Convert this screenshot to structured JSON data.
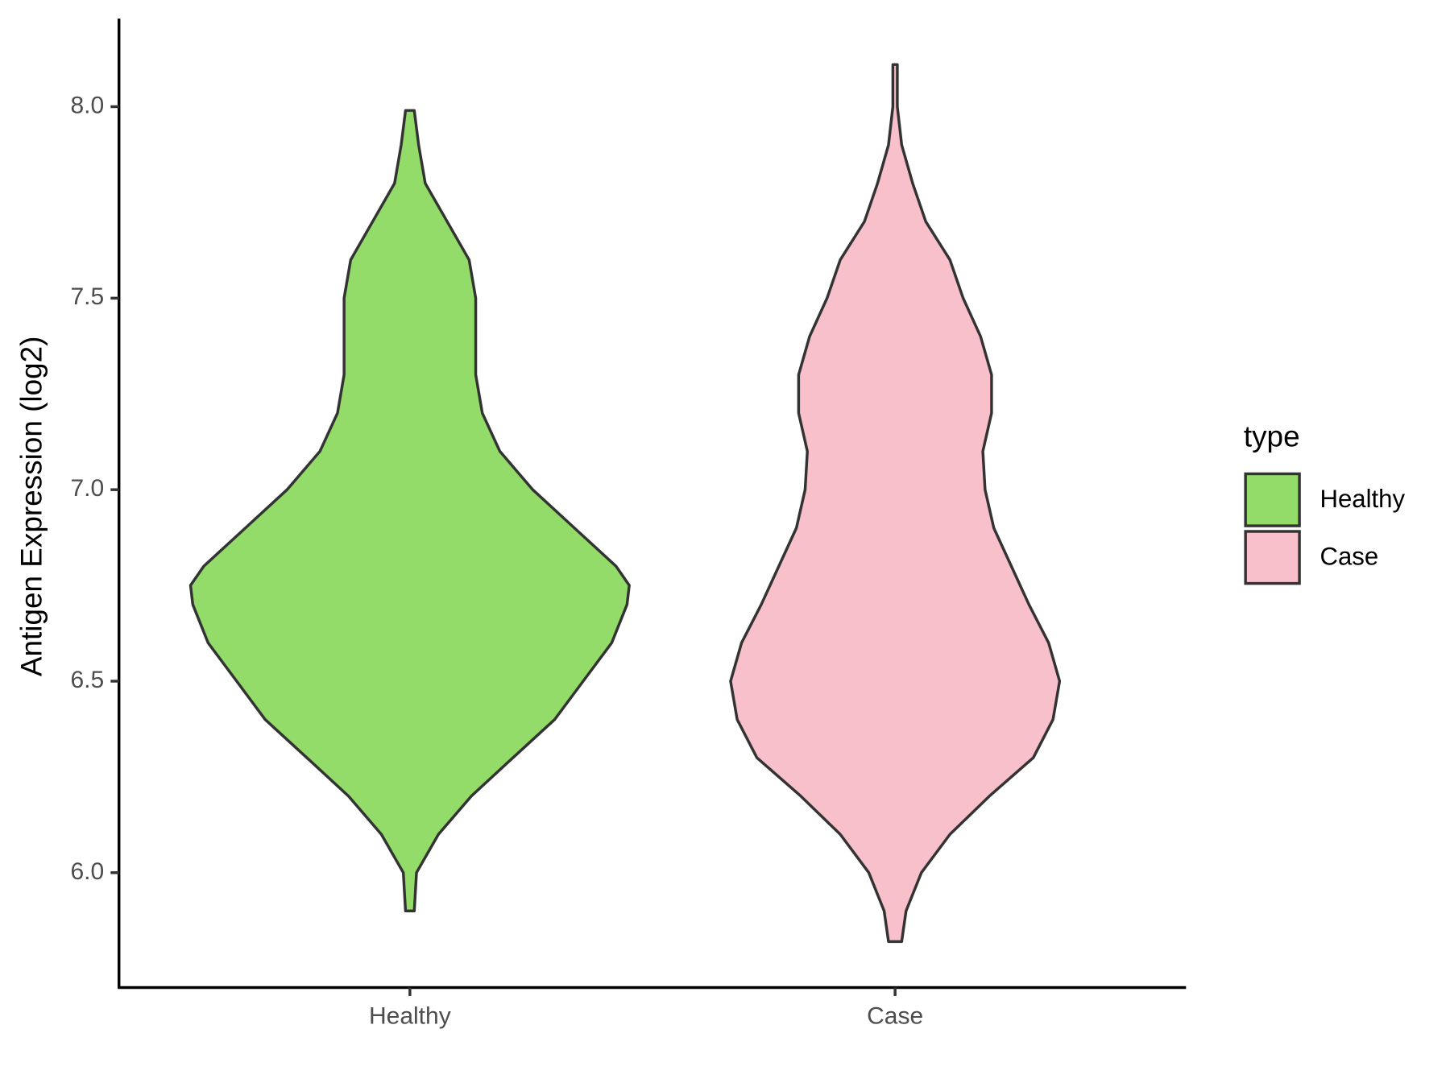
{
  "chart_data": {
    "type": "violin",
    "y_label": "Antigen Expression (log2)",
    "categories": [
      "Healthy",
      "Case"
    ],
    "legend_title": "type",
    "series": [
      {
        "name": "Healthy",
        "color": "#93dc6a",
        "y": [
          5.9,
          6.0,
          6.1,
          6.2,
          6.3,
          6.4,
          6.5,
          6.6,
          6.7,
          6.75,
          6.8,
          6.9,
          7.0,
          7.1,
          7.2,
          7.3,
          7.4,
          7.5,
          7.6,
          7.7,
          7.8,
          7.9,
          7.99
        ],
        "width": [
          0.02,
          0.03,
          0.13,
          0.28,
          0.47,
          0.66,
          0.79,
          0.92,
          0.99,
          1.0,
          0.94,
          0.75,
          0.56,
          0.41,
          0.33,
          0.3,
          0.3,
          0.3,
          0.27,
          0.17,
          0.07,
          0.04,
          0.02
        ]
      },
      {
        "name": "Case",
        "color": "#f7c0cb",
        "y": [
          5.82,
          5.9,
          6.0,
          6.1,
          6.2,
          6.3,
          6.4,
          6.5,
          6.6,
          6.7,
          6.8,
          6.9,
          7.0,
          7.1,
          7.2,
          7.3,
          7.4,
          7.5,
          7.6,
          7.7,
          7.8,
          7.9,
          8.0,
          8.11
        ],
        "width": [
          0.03,
          0.05,
          0.12,
          0.25,
          0.43,
          0.63,
          0.72,
          0.75,
          0.7,
          0.61,
          0.53,
          0.45,
          0.41,
          0.4,
          0.44,
          0.44,
          0.39,
          0.31,
          0.25,
          0.14,
          0.08,
          0.03,
          0.01,
          0.01
        ]
      }
    ],
    "ylim": [
      5.7,
      8.23
    ],
    "yticks": [
      {
        "value": 6,
        "label": "6.0"
      },
      {
        "value": 6.5,
        "label": "6.5"
      },
      {
        "value": 7,
        "label": "7.0"
      },
      {
        "value": 7.5,
        "label": "7.5"
      },
      {
        "value": 8,
        "label": "8.0"
      }
    ]
  }
}
